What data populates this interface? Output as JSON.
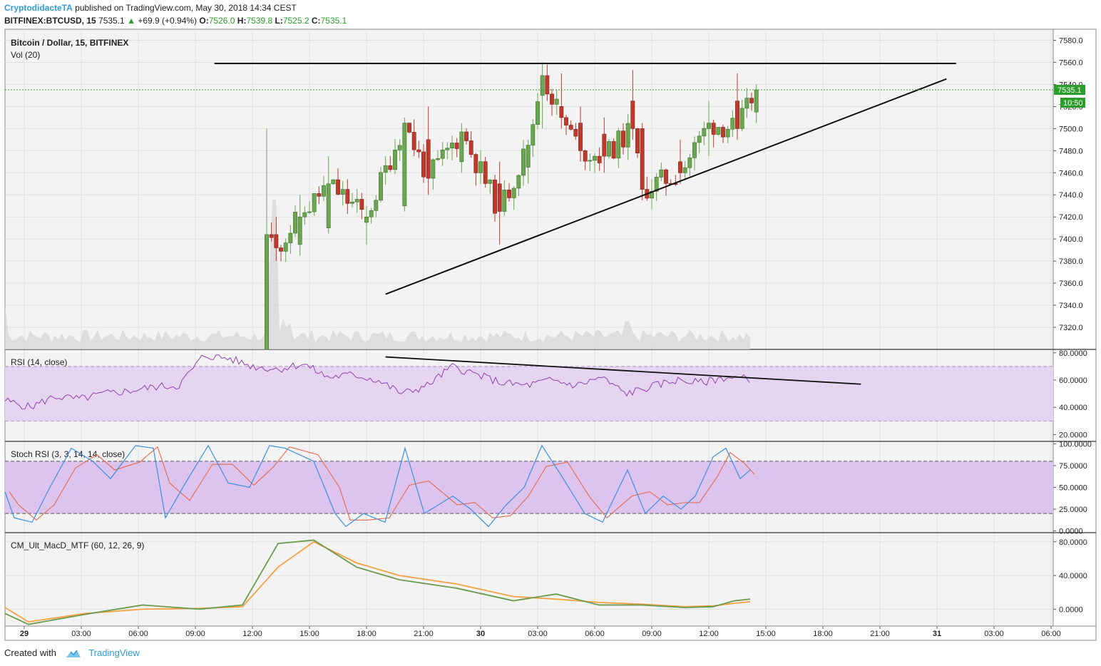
{
  "header": {
    "author": "CryptodidacteTA",
    "published_text": "published on TradingView.com, May 30, 2018 14:34 CEST",
    "symbol": "BITFINEX:BTCUSD, 15",
    "last": "7535.1",
    "arrow": "▲",
    "change": "+69.9 (+0.94%)",
    "o_label": "O:",
    "o": "7526.0",
    "h_label": "H:",
    "h": "7539.8",
    "l_label": "L:",
    "l": "7525.2",
    "c_label": "C:",
    "c": "7535.1"
  },
  "footer": {
    "created_with": "Created with",
    "brand": "TradingView"
  },
  "colors": {
    "up": "#6aa84f",
    "down": "#c0392b",
    "rsi": "#8e44ad",
    "rsi_band": "#e6d5f0",
    "stoch_k": "#3d8fe0",
    "stoch_d": "#e8694a",
    "stoch_band": "#dcc4ef",
    "macd": "#6b9b4e",
    "signal": "#f5a142",
    "hist_down": "#e53935",
    "price_line": "#2a9d2a"
  },
  "chart_data": [
    {
      "type": "candlestick",
      "title": "Bitcoin / Dollar, 15, BITFINEX",
      "volume_label": "Vol (20)",
      "ylim": [
        7300,
        7590
      ],
      "y_ticks": [
        "7580.0",
        "7560.0",
        "7540.0",
        "7520.0",
        "7500.0",
        "7480.0",
        "7460.0",
        "7440.0",
        "7420.0",
        "7400.0",
        "7380.0",
        "7360.0",
        "7340.0",
        "7320.0"
      ],
      "last_price_label": "7535.1",
      "countdown_label": "10:50",
      "x_ticks": [
        "29",
        "03:00",
        "06:00",
        "09:00",
        "12:00",
        "15:00",
        "18:00",
        "21:00",
        "30",
        "03:00",
        "06:00",
        "09:00",
        "12:00",
        "15:00",
        "18:00",
        "21:00",
        "31",
        "03:00",
        "06:00"
      ],
      "ohlc_sample": [
        [
          "29 12:45",
          7300,
          7500,
          7300,
          7404
        ],
        [
          "29 13:15",
          7404,
          7420,
          7380,
          7392
        ],
        [
          "29 14:30",
          7395,
          7440,
          7385,
          7420
        ],
        [
          "29 16:00",
          7410,
          7475,
          7405,
          7450
        ],
        [
          "29 18:00",
          7415,
          7430,
          7395,
          7420
        ],
        [
          "29 20:00",
          7430,
          7510,
          7425,
          7505
        ],
        [
          "29 21:15",
          7490,
          7520,
          7440,
          7455
        ],
        [
          "29 23:00",
          7470,
          7505,
          7460,
          7497
        ],
        [
          "30 01:00",
          7450,
          7470,
          7395,
          7425
        ],
        [
          "30 02:30",
          7465,
          7490,
          7450,
          7485
        ],
        [
          "30 03:15",
          7530,
          7560,
          7500,
          7548
        ],
        [
          "30 04:15",
          7520,
          7550,
          7500,
          7510
        ],
        [
          "30 05:15",
          7505,
          7520,
          7470,
          7480
        ],
        [
          "30 06:30",
          7495,
          7510,
          7460,
          7475
        ],
        [
          "30 08:00",
          7525,
          7553,
          7490,
          7500
        ],
        [
          "30 08:30",
          7500,
          7505,
          7435,
          7445
        ],
        [
          "30 10:30",
          7470,
          7490,
          7450,
          7460
        ],
        [
          "30 12:00",
          7500,
          7525,
          7475,
          7505
        ],
        [
          "30 13:30",
          7525,
          7550,
          7490,
          7500
        ],
        [
          "30 14:30",
          7515,
          7540,
          7505,
          7535.1
        ]
      ],
      "lines": [
        {
          "name": "resistance",
          "from": [
            "29 10:00",
            7559
          ],
          "to": [
            "31 01:00",
            7559
          ]
        },
        {
          "name": "rising-support",
          "from": [
            "29 19:00",
            7350
          ],
          "to": [
            "31 00:30",
            7545
          ]
        }
      ]
    },
    {
      "type": "line",
      "title": "RSI (14, close)",
      "ylim": [
        20,
        80
      ],
      "y_ticks": [
        "80.0000",
        "60.0000",
        "40.0000",
        "20.0000"
      ],
      "band": [
        30,
        70
      ],
      "values_sample": [
        45,
        40,
        48,
        46,
        50,
        52,
        55,
        56,
        78,
        76,
        70,
        68,
        72,
        62,
        64,
        60,
        50,
        56,
        70,
        64,
        58,
        56,
        60,
        56,
        62,
        50,
        55,
        60,
        58,
        62,
        61
      ],
      "trendline": {
        "from": [
          "29 19:00",
          77
        ],
        "to": [
          "30 20:00",
          57
        ]
      }
    },
    {
      "type": "line",
      "title": "Stoch RSI (3, 3, 14, 14, close)",
      "ylim": [
        0,
        100
      ],
      "y_ticks": [
        "100.0000",
        "75.0000",
        "50.0000",
        "25.0000",
        "0.0000"
      ],
      "band": [
        20,
        80
      ]
    },
    {
      "type": "line",
      "title": "CM_Ult_MacD_MTF (60, 12, 26, 9)",
      "ylim": [
        -20,
        90
      ],
      "y_ticks": [
        "80.0000",
        "40.0000",
        "0.0000"
      ],
      "series": [
        {
          "name": "",
          "values": [
            -5,
            -18,
            -12,
            -6,
            5,
            0,
            5,
            78,
            82,
            50,
            35,
            25,
            10,
            18,
            5,
            5,
            2,
            3,
            10,
            12
          ]
        },
        {
          "name": "",
          "values": [
            2,
            -15,
            -10,
            -5,
            0,
            1,
            3,
            50,
            80,
            55,
            40,
            30,
            15,
            12,
            8,
            6,
            3,
            4,
            7,
            9
          ]
        }
      ]
    }
  ]
}
